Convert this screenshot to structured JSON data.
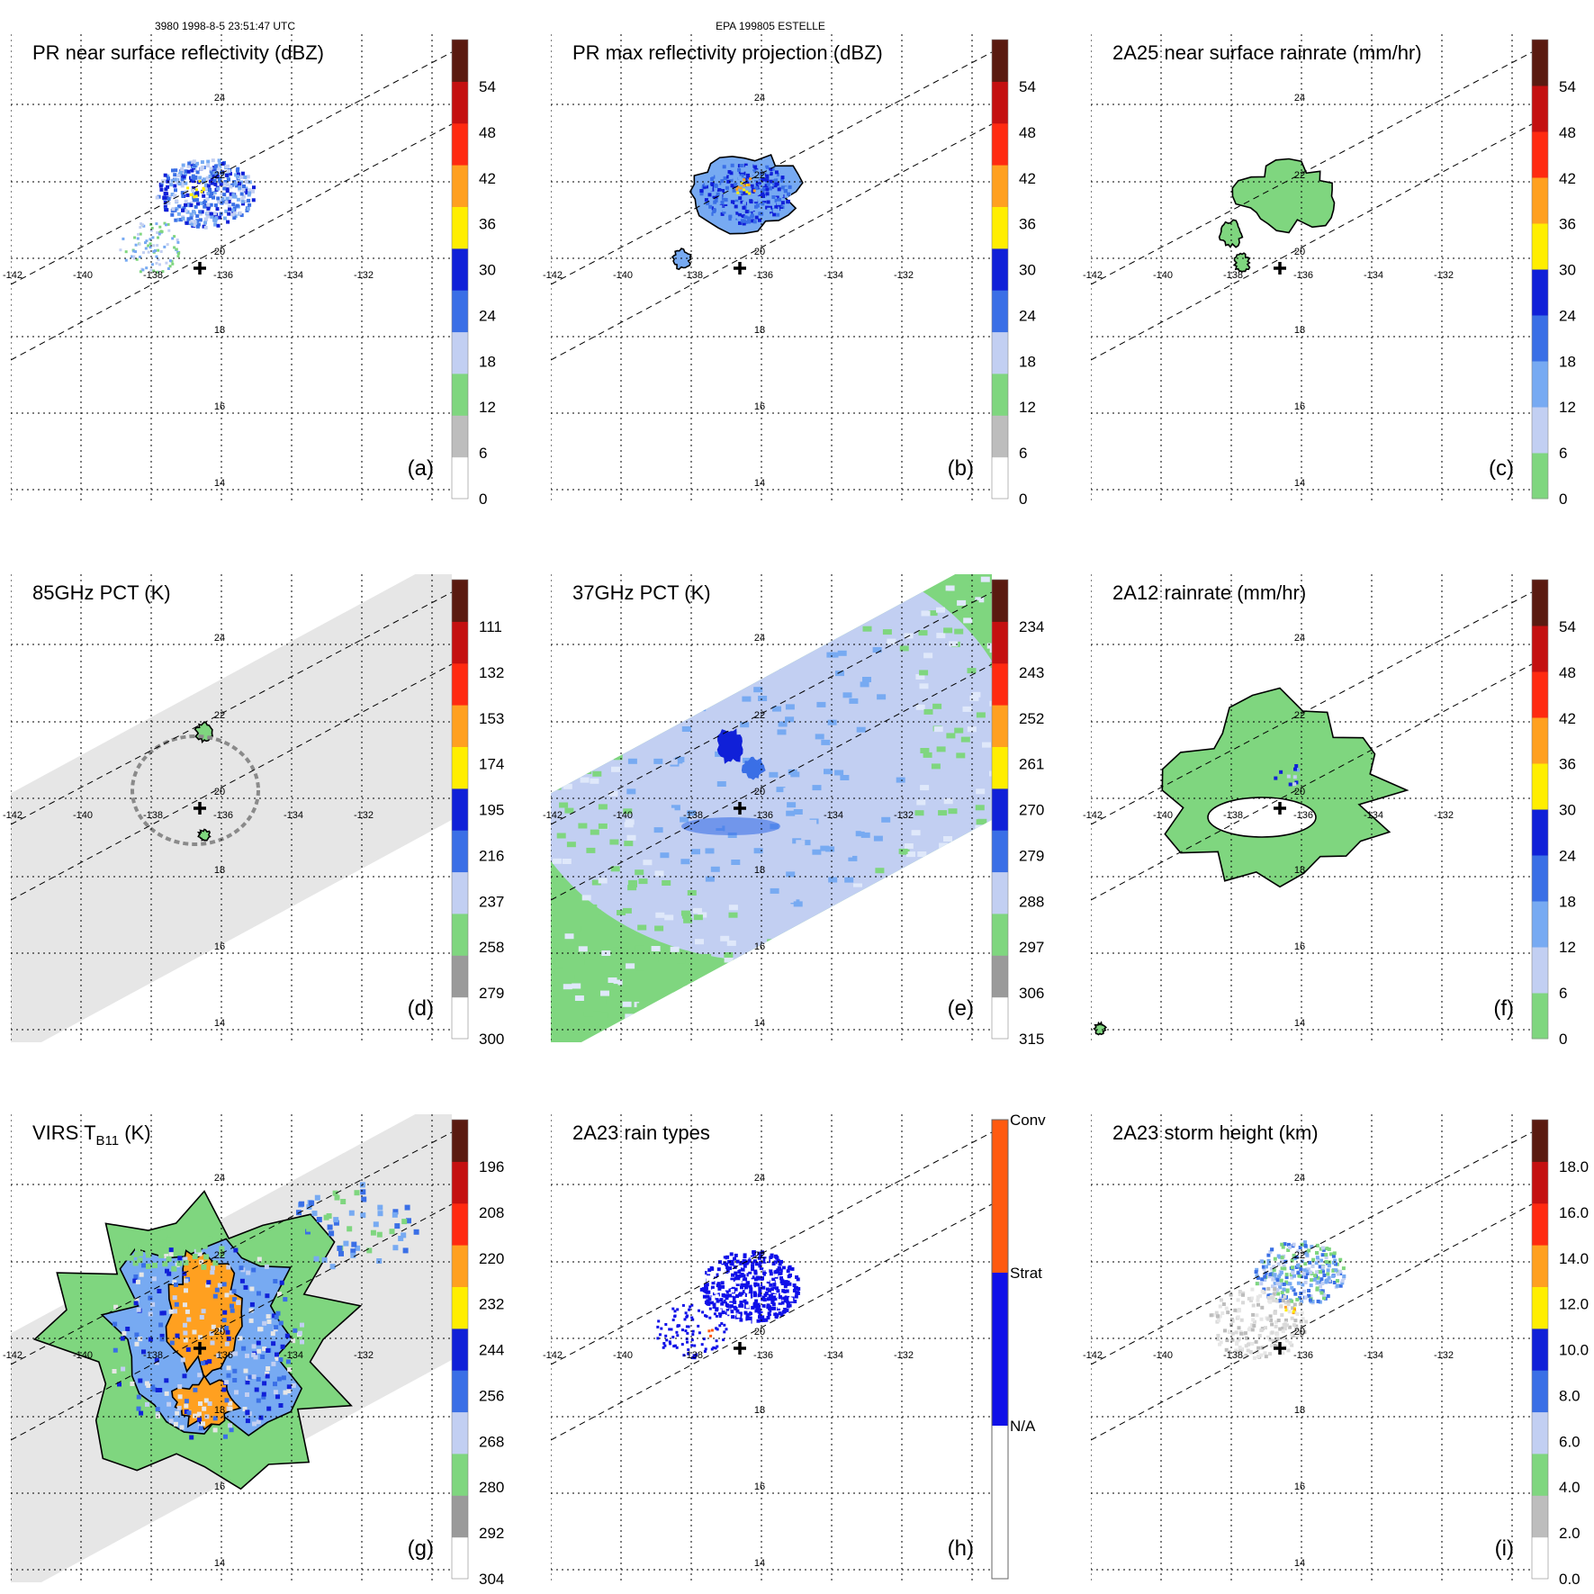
{
  "header": {
    "orbit_time": "3980 1998-8-5 23:51:47 UTC",
    "storm_id": "EPA 199805 ESTELLE"
  },
  "map": {
    "lon_labels": [
      "-142",
      "-140",
      "-138",
      "-136",
      "-134",
      "-132"
    ],
    "lat_labels": [
      "24",
      "22",
      "20",
      "18",
      "16",
      "14"
    ]
  },
  "colors": {
    "white": "#ffffff",
    "gray_light": "#d9d9d9",
    "gray_mid": "#bdbdbd",
    "gray_dark": "#9a9a9a",
    "green": "#7fd67f",
    "blue_pale": "#c2cff2",
    "blue_light": "#77aaf2",
    "blue_mid": "#3a6fe6",
    "blue_dark": "#1020d8",
    "yellow": "#ffee00",
    "orange": "#ffa020",
    "orange_red": "#ff6a10",
    "red": "#ff2a10",
    "dark_red": "#c41010",
    "maroon": "#5a1a10",
    "conv": "#ff5a10",
    "strat": "#1010e8"
  },
  "panels": [
    {
      "id": "a",
      "title": "PR near surface reflectivity (dBZ)",
      "letter": "(a)",
      "colorbar": [
        "54",
        "48",
        "42",
        "36",
        "30",
        "24",
        "18",
        "12",
        "6",
        "0"
      ],
      "swath": "none",
      "field": "pr_reflectivity"
    },
    {
      "id": "b",
      "title": "PR max reflectivity projection (dBZ)",
      "letter": "(b)",
      "colorbar": [
        "54",
        "48",
        "42",
        "36",
        "30",
        "24",
        "18",
        "12",
        "6",
        "0"
      ],
      "swath": "none",
      "field": "pr_max_reflectivity"
    },
    {
      "id": "c",
      "title": "2A25 near surface rainrate (mm/hr)",
      "letter": "(c)",
      "colorbar": [
        "54",
        "48",
        "42",
        "36",
        "30",
        "24",
        "18",
        "12",
        "6",
        "0"
      ],
      "swath": "none",
      "field": "rainrate_2a25"
    },
    {
      "id": "d",
      "title": "85GHz PCT (K)",
      "letter": "(d)",
      "colorbar": [
        "111",
        "132",
        "153",
        "174",
        "195",
        "216",
        "237",
        "258",
        "279",
        "300"
      ],
      "swath": "gray",
      "field": "pct85"
    },
    {
      "id": "e",
      "title": "37GHz PCT (K)",
      "letter": "(e)",
      "colorbar": [
        "234",
        "243",
        "252",
        "261",
        "270",
        "279",
        "288",
        "297",
        "306",
        "315"
      ],
      "swath": "mixed",
      "field": "pct37"
    },
    {
      "id": "f",
      "title": "2A12 rainrate (mm/hr)",
      "letter": "(f)",
      "colorbar": [
        "54",
        "48",
        "42",
        "36",
        "30",
        "24",
        "18",
        "12",
        "6",
        "0"
      ],
      "swath": "none",
      "field": "rainrate_2a12"
    },
    {
      "id": "g",
      "title_main": "VIRS T",
      "title_sub": "B11",
      "title_tail": " (K)",
      "letter": "(g)",
      "colorbar": [
        "196",
        "208",
        "220",
        "232",
        "244",
        "256",
        "268",
        "280",
        "292",
        "304"
      ],
      "swath": "gray",
      "field": "virs"
    },
    {
      "id": "h",
      "title": "2A23 rain types",
      "letter": "(h)",
      "category_labels": [
        "Conv",
        "Strat",
        "N/A"
      ],
      "swath": "none",
      "field": "rain_types"
    },
    {
      "id": "i",
      "title": "2A23 storm height (km)",
      "letter": "(i)",
      "colorbar": [
        "18.0",
        "16.0",
        "14.0",
        "12.0",
        "10.0",
        "8.0",
        "6.0",
        "4.0",
        "2.0",
        "0.0"
      ],
      "swath": "none",
      "field": "storm_height"
    }
  ]
}
